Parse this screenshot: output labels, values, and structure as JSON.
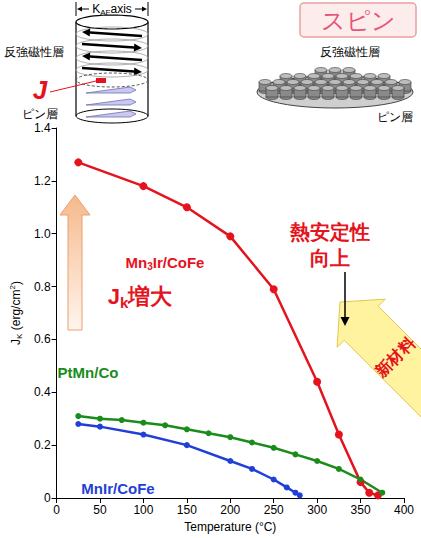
{
  "chart_data": {
    "type": "line",
    "x_label": "Temperature (°C)",
    "y_label": [
      {
        "text": "J"
      },
      {
        "text": "K",
        "sub": true
      },
      {
        "text": " (erg/cm"
      },
      {
        "text": "2",
        "sup": true
      },
      {
        "text": ")"
      }
    ],
    "xlim": [
      0,
      400
    ],
    "xticks": [
      0,
      50,
      100,
      150,
      200,
      250,
      300,
      350,
      400
    ],
    "ylim": [
      0,
      1.4
    ],
    "yticks": [
      0,
      0.2,
      0.4,
      0.6,
      0.8,
      {
        "value": 1,
        "label": "1.0"
      },
      1.2,
      1.4
    ],
    "grid": false,
    "series": [
      {
        "name": "Mn3Ir/CoFe",
        "color": "#e5131d",
        "marker": "circle",
        "x": [
          25,
          100,
          150,
          200,
          250,
          300,
          325,
          350,
          360,
          370
        ],
        "values": [
          1.27,
          1.18,
          1.1,
          0.99,
          0.79,
          0.44,
          0.24,
          0.06,
          0.02,
          0.01
        ]
      },
      {
        "name": "PtMn/Co",
        "color": "#1a8c1a",
        "marker": "circle",
        "x": [
          25,
          50,
          75,
          100,
          125,
          150,
          175,
          200,
          225,
          250,
          275,
          300,
          325,
          350,
          375
        ],
        "values": [
          0.31,
          0.3,
          0.295,
          0.285,
          0.275,
          0.26,
          0.245,
          0.23,
          0.21,
          0.19,
          0.165,
          0.14,
          0.11,
          0.07,
          0.02
        ]
      },
      {
        "name": "MnIr/CoFe",
        "color": "#1f3fd8",
        "marker": "circle",
        "x": [
          25,
          50,
          100,
          150,
          200,
          225,
          250,
          265,
          275,
          280
        ],
        "values": [
          0.28,
          0.27,
          0.24,
          0.2,
          0.14,
          0.11,
          0.07,
          0.04,
          0.02,
          0.01
        ]
      }
    ],
    "annotations": [
      {
        "text": [
          {
            "text": "J"
          },
          {
            "text": "k",
            "sub": true
          },
          {
            "text": "増大"
          }
        ]
      },
      {
        "text": "熱安定性向上"
      },
      {
        "text": "新材料"
      }
    ]
  },
  "diagram": {
    "title": "スピン",
    "left": {
      "axis_label": [
        {
          "text": "K"
        },
        {
          "text": "AF",
          "sub": true
        },
        {
          "text": "axis"
        }
      ],
      "upper_label": "反強磁性層",
      "coupling_label": "J",
      "lower_label": "ピン層"
    },
    "right": {
      "upper_label": "反強磁性層",
      "lower_label": "ピン層"
    }
  }
}
